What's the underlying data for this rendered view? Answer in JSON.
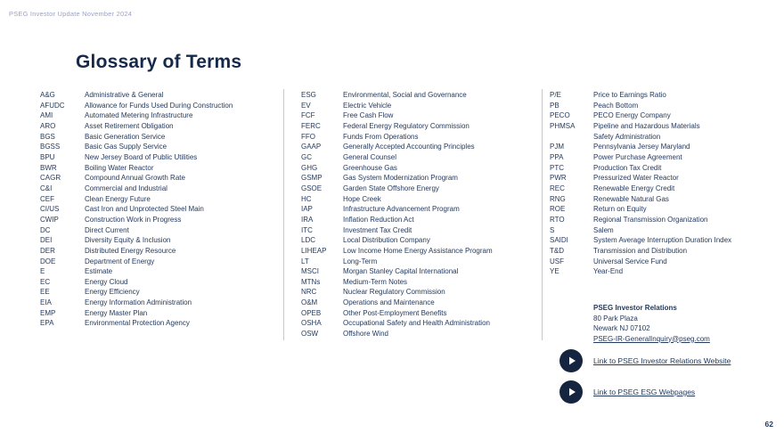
{
  "header": {
    "label": "PSEG Investor Update November 2024"
  },
  "title": "Glossary of Terms",
  "glossary": {
    "columns": [
      {
        "entries": [
          {
            "abbr": "A&G",
            "def": "Administrative & General"
          },
          {
            "abbr": "AFUDC",
            "def": "Allowance for Funds Used During Construction"
          },
          {
            "abbr": "AMI",
            "def": "Automated Metering Infrastructure"
          },
          {
            "abbr": "ARO",
            "def": "Asset Retirement Obligation"
          },
          {
            "abbr": "BGS",
            "def": "Basic Generation Service"
          },
          {
            "abbr": "BGSS",
            "def": "Basic Gas Supply Service"
          },
          {
            "abbr": "BPU",
            "def": "New Jersey Board of Public Utilities"
          },
          {
            "abbr": "BWR",
            "def": "Boiling Water Reactor"
          },
          {
            "abbr": "CAGR",
            "def": "Compound Annual Growth Rate"
          },
          {
            "abbr": "C&I",
            "def": "Commercial and Industrial"
          },
          {
            "abbr": "CEF",
            "def": "Clean Energy Future"
          },
          {
            "abbr": "CI/US",
            "def": "Cast Iron and Unprotected Steel Main"
          },
          {
            "abbr": "CWIP",
            "def": "Construction Work in Progress"
          },
          {
            "abbr": "DC",
            "def": "Direct Current"
          },
          {
            "abbr": "DEI",
            "def": "Diversity Equity & Inclusion"
          },
          {
            "abbr": "DER",
            "def": "Distributed Energy Resource"
          },
          {
            "abbr": "DOE",
            "def": "Department of Energy"
          },
          {
            "abbr": "E",
            "def": "Estimate"
          },
          {
            "abbr": "EC",
            "def": "Energy Cloud"
          },
          {
            "abbr": "EE",
            "def": "Energy Efficiency"
          },
          {
            "abbr": "EIA",
            "def": "Energy Information Administration"
          },
          {
            "abbr": "EMP",
            "def": "Energy Master Plan"
          },
          {
            "abbr": "EPA",
            "def": "Environmental Protection Agency"
          }
        ]
      },
      {
        "entries": [
          {
            "abbr": "ESG",
            "def": "Environmental, Social and Governance"
          },
          {
            "abbr": "EV",
            "def": "Electric Vehicle"
          },
          {
            "abbr": "FCF",
            "def": "Free Cash Flow"
          },
          {
            "abbr": "FERC",
            "def": "Federal Energy Regulatory Commission"
          },
          {
            "abbr": "FFO",
            "def": "Funds From Operations"
          },
          {
            "abbr": "GAAP",
            "def": "Generally Accepted Accounting Principles"
          },
          {
            "abbr": "GC",
            "def": "General Counsel"
          },
          {
            "abbr": "GHG",
            "def": "Greenhouse Gas"
          },
          {
            "abbr": "GSMP",
            "def": "Gas System Modernization Program"
          },
          {
            "abbr": "GSOE",
            "def": "Garden State Offshore Energy"
          },
          {
            "abbr": "HC",
            "def": "Hope Creek"
          },
          {
            "abbr": "IAP",
            "def": "Infrastructure Advancement Program"
          },
          {
            "abbr": "IRA",
            "def": "Inflation Reduction Act"
          },
          {
            "abbr": "ITC",
            "def": "Investment Tax Credit"
          },
          {
            "abbr": "LDC",
            "def": "Local Distribution Company"
          },
          {
            "abbr": "LIHEAP",
            "def": "Low Income Home Energy Assistance Program"
          },
          {
            "abbr": "LT",
            "def": "Long-Term"
          },
          {
            "abbr": "MSCI",
            "def": "Morgan Stanley Capital International"
          },
          {
            "abbr": "MTNs",
            "def": "Medium-Term Notes"
          },
          {
            "abbr": "NRC",
            "def": "Nuclear Regulatory Commission"
          },
          {
            "abbr": "O&M",
            "def": "Operations and Maintenance"
          },
          {
            "abbr": "OPEB",
            "def": "Other Post-Employment Benefits"
          },
          {
            "abbr": "OSHA",
            "def": "Occupational Safety and Health Administration"
          },
          {
            "abbr": "OSW",
            "def": "Offshore Wind"
          }
        ]
      },
      {
        "entries": [
          {
            "abbr": "P/E",
            "def": "Price to Earnings Ratio"
          },
          {
            "abbr": "PB",
            "def": "Peach Bottom"
          },
          {
            "abbr": "PECO",
            "def": "PECO Energy Company"
          },
          {
            "abbr": "PHMSA",
            "def": "Pipeline and Hazardous Materials\nSafety Administration"
          },
          {
            "abbr": "PJM",
            "def": "Pennsylvania Jersey Maryland"
          },
          {
            "abbr": "PPA",
            "def": "Power Purchase Agreement"
          },
          {
            "abbr": "PTC",
            "def": "Production Tax Credit"
          },
          {
            "abbr": "PWR",
            "def": "Pressurized Water Reactor"
          },
          {
            "abbr": "REC",
            "def": "Renewable Energy Credit"
          },
          {
            "abbr": "RNG",
            "def": "Renewable Natural Gas"
          },
          {
            "abbr": "ROE",
            "def": "Return on Equity"
          },
          {
            "abbr": "RTO",
            "def": "Regional Transmission Organization"
          },
          {
            "abbr": "S",
            "def": "Salem"
          },
          {
            "abbr": "SAIDI",
            "def": "System Average Interruption Duration Index"
          },
          {
            "abbr": "T&D",
            "def": "Transmission and Distribution"
          },
          {
            "abbr": "USF",
            "def": "Universal Service Fund"
          },
          {
            "abbr": "YE",
            "def": "Year-End"
          }
        ]
      }
    ]
  },
  "contact": {
    "name": "PSEG Investor Relations",
    "address_line1": "80 Park Plaza",
    "address_line2": "Newark NJ 07102",
    "email": "PSEG-IR-GeneralInquiry@pseg.com"
  },
  "links": [
    {
      "label": "Link to PSEG Investor Relations Website"
    },
    {
      "label": "Link to PSEG ESG Webpages"
    }
  ],
  "page_number": "62",
  "colors": {
    "text_navy": "#243a5e",
    "title_navy": "#16294b",
    "header_muted": "#9aa2cb",
    "play_circle": "#15253f",
    "divider_gray": "#c9c9c9"
  }
}
